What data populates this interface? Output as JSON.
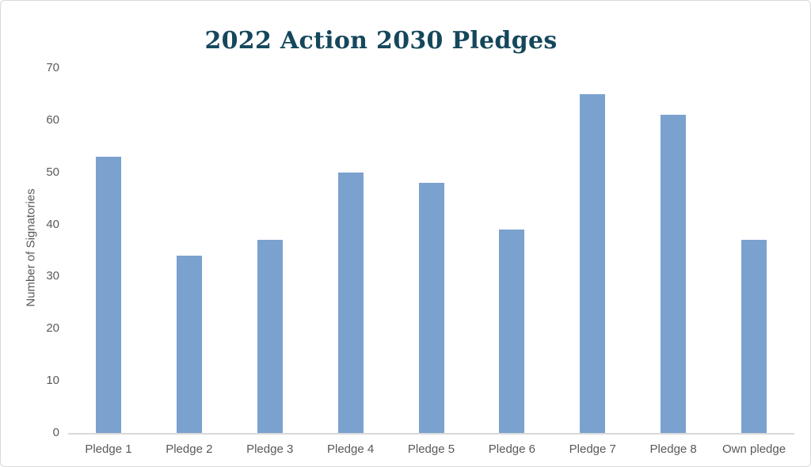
{
  "colors": {
    "background": "#FFFFFF",
    "border": "#D8D8D8",
    "bar_fill": "#7BA1CF",
    "title_text": "#15475C",
    "axis_text": "#595959",
    "axis_line": "#D9D9D9"
  },
  "chart_data": {
    "type": "bar",
    "title": "2022 Action 2030 Pledges",
    "categories": [
      "Pledge 1",
      "Pledge 2",
      "Pledge 3",
      "Pledge 4",
      "Pledge 5",
      "Pledge 6",
      "Pledge 7",
      "Pledge 8",
      "Own pledge"
    ],
    "values": [
      53,
      34,
      37,
      50,
      48,
      39,
      65,
      61,
      37
    ],
    "xlabel": "",
    "ylabel": "Number of Signatories",
    "ylim": [
      0,
      70
    ],
    "yticks": [
      0,
      10,
      20,
      30,
      40,
      50,
      60,
      70
    ],
    "grid": false,
    "legend": false,
    "bar_units": "signatories"
  }
}
